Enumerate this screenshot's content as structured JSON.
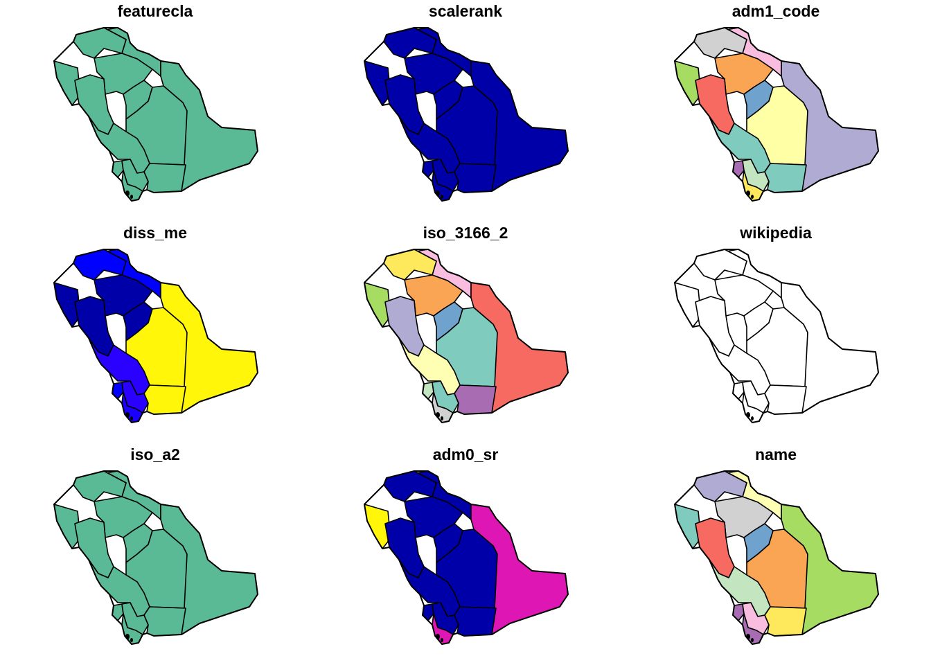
{
  "figure": {
    "panels": [
      {
        "title": "featurecla",
        "fills": [
          "#5aba95",
          "#5aba95",
          "#5aba95",
          "#5aba95",
          "#5aba95",
          "#5aba95",
          "#5aba95",
          "#5aba95",
          "#5aba95",
          "#5aba95",
          "#5aba95",
          "#5aba95",
          "#5aba95"
        ]
      },
      {
        "title": "scalerank",
        "fills": [
          "#0000a8",
          "#0000a8",
          "#0000a8",
          "#0000a8",
          "#0000a8",
          "#0000a8",
          "#0000a8",
          "#0000a8",
          "#0000a8",
          "#0000a8",
          "#0000a8",
          "#0000a8",
          "#0000a8"
        ]
      },
      {
        "title": "adm1_code",
        "fills": [
          "#f9bde0",
          "#d1d1d1",
          "#a7dc62",
          "#faa554",
          "#f66a62",
          "#6fa2cd",
          "#ffffa6",
          "#b0abd3",
          "#7fcbbd",
          "#a86cb2",
          "#c3e5c0",
          "#7fcbbd",
          "#fde95b"
        ]
      },
      {
        "title": "diss_me",
        "fills": [
          "#0000ff",
          "#0000ff",
          "#0000a8",
          "#0000a8",
          "#0000a8",
          "#0000a8",
          "#fff60a",
          "#fff60a",
          "#2a00ff",
          "#0000ff",
          "#2a00ff",
          "#fff60a",
          "#1a00ff"
        ]
      },
      {
        "title": "iso_3166_2",
        "fills": [
          "#f9bde0",
          "#fde95b",
          "#a7dc62",
          "#faa554",
          "#b0abd3",
          "#6fa2cd",
          "#7fcbbd",
          "#f66a62",
          "#ffffb3",
          "#c3e5c0",
          "#7fcbbd",
          "#a86cb2",
          "#d1d1d1"
        ]
      },
      {
        "title": "wikipedia",
        "fills": [
          "#ffffff",
          "#ffffff",
          "#ffffff",
          "#ffffff",
          "#ffffff",
          "#ffffff",
          "#ffffff",
          "#ffffff",
          "#ffffff",
          "#ffffff",
          "#ffffff",
          "#ffffff",
          "#ffffff"
        ]
      },
      {
        "title": "iso_a2",
        "fills": [
          "#5aba95",
          "#5aba95",
          "#5aba95",
          "#5aba95",
          "#5aba95",
          "#5aba95",
          "#5aba95",
          "#5aba95",
          "#5aba95",
          "#5aba95",
          "#5aba95",
          "#5aba95",
          "#5aba95"
        ]
      },
      {
        "title": "adm0_sr",
        "fills": [
          "#0000a8",
          "#0000a8",
          "#fff60a",
          "#0000a8",
          "#0000a8",
          "#0000a8",
          "#0000a8",
          "#de17b4",
          "#0000a8",
          "#0000a8",
          "#0000a8",
          "#0000a8",
          "#de17b4"
        ]
      },
      {
        "title": "name",
        "fills": [
          "#ffffb3",
          "#b0abd3",
          "#7fcbbd",
          "#d1d1d1",
          "#f66a62",
          "#6fa2cd",
          "#faa554",
          "#a7dc62",
          "#c3e5c0",
          "#a86cb2",
          "#f9bde0",
          "#fde95b",
          "#a86cb2"
        ]
      }
    ]
  }
}
